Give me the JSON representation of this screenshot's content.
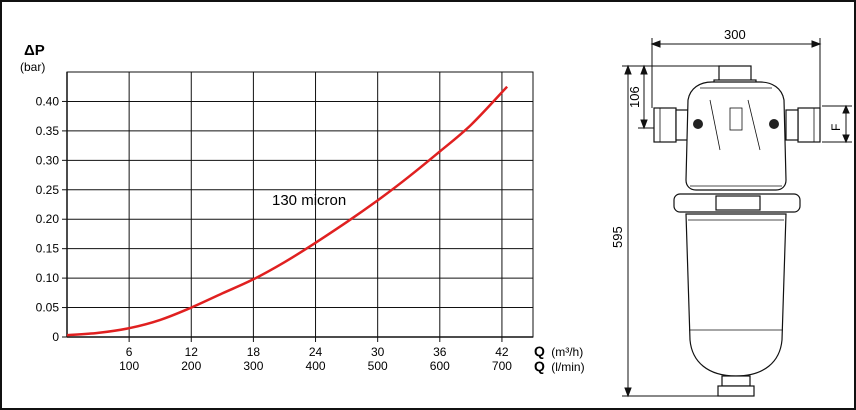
{
  "chart_data": {
    "type": "line",
    "ylabel_symbol": "ΔP",
    "ylabel_unit": "(bar)",
    "ylim": [
      0,
      0.45
    ],
    "yticks": [
      "0",
      "0.05",
      "0.10",
      "0.15",
      "0.20",
      "0.25",
      "0.30",
      "0.35",
      "0.40"
    ],
    "ytick_values": [
      0,
      0.05,
      0.1,
      0.15,
      0.2,
      0.25,
      0.3,
      0.35,
      0.4
    ],
    "xlim": [
      0,
      45
    ],
    "xticks_m3h": [
      "6",
      "12",
      "18",
      "24",
      "30",
      "36",
      "42"
    ],
    "xticks_m3h_values": [
      6,
      12,
      18,
      24,
      30,
      36,
      42
    ],
    "xticks_lmin": [
      "100",
      "200",
      "300",
      "400",
      "500",
      "600",
      "700"
    ],
    "xlabel_m3h_symbol": "Q",
    "xlabel_m3h_unit": "(m³/h)",
    "xlabel_lmin_symbol": "Q",
    "xlabel_lmin_unit": "(l/min)",
    "grid": true,
    "series": [
      {
        "name": "130 micron",
        "color": "#e02020",
        "x": [
          0,
          3,
          6,
          9,
          12,
          15,
          18,
          21,
          24,
          27,
          30,
          33,
          36,
          39,
          42.5
        ],
        "y": [
          0.003,
          0.007,
          0.015,
          0.029,
          0.05,
          0.074,
          0.098,
          0.127,
          0.16,
          0.195,
          0.232,
          0.272,
          0.315,
          0.36,
          0.425
        ]
      }
    ]
  },
  "drawing": {
    "dim_width": "300",
    "dim_top": "106",
    "dim_height": "595",
    "dim_port": "F"
  }
}
